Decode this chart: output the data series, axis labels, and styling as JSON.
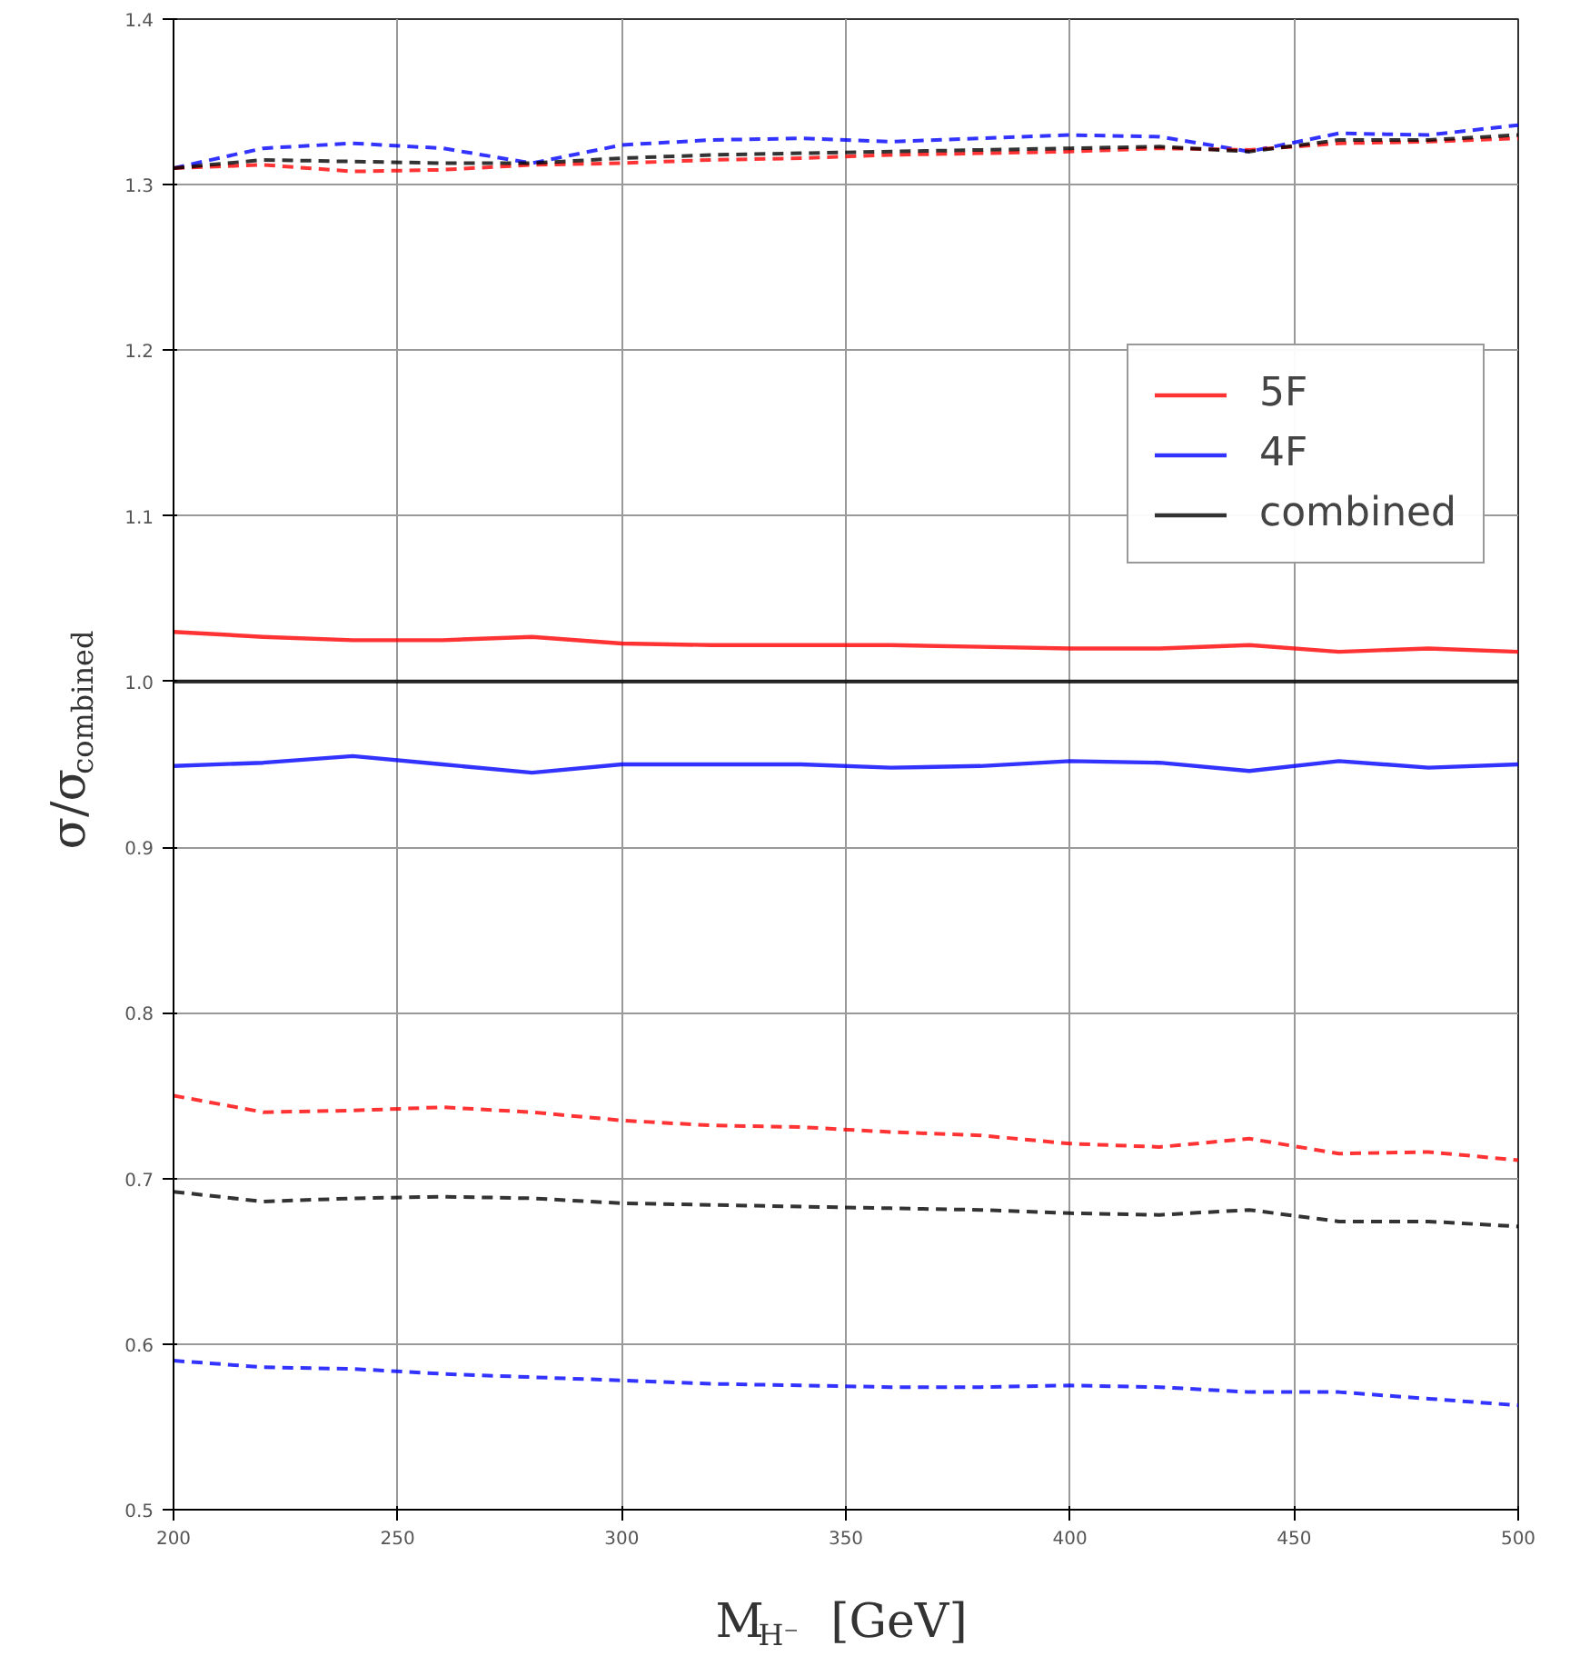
{
  "chart_data": {
    "type": "line",
    "xlabel": "M$_{H⁻}$ [GeV]",
    "ylabel": "σ/σ$_{combined}$",
    "x": [
      200,
      220,
      240,
      260,
      280,
      300,
      320,
      340,
      360,
      380,
      400,
      420,
      440,
      460,
      480,
      500
    ],
    "xlim": [
      200,
      500
    ],
    "xticks": [
      200,
      250,
      300,
      350,
      400,
      450,
      500
    ],
    "ylim": [
      0.5,
      1.4
    ],
    "yticks": [
      0.5,
      0.6,
      0.7,
      0.8,
      0.9,
      {
        "value": 1.0,
        "label": "1.0"
      },
      1.1,
      1.2,
      1.3,
      1.4
    ],
    "grid": true,
    "legend": "right",
    "line_style": "solid",
    "series": [
      {
        "name": "5F",
        "color": "#ff0000",
        "values": [
          1.03,
          1.027,
          1.025,
          1.025,
          1.027,
          1.023,
          1.022,
          1.022,
          1.022,
          1.021,
          1.02,
          1.02,
          1.022,
          1.018,
          1.02,
          1.018
        ]
      },
      {
        "name": "4F",
        "color": "#0000ff",
        "values": [
          0.949,
          0.951,
          0.955,
          0.95,
          0.945,
          0.95,
          0.95,
          0.95,
          0.948,
          0.949,
          0.952,
          0.951,
          0.946,
          0.952,
          0.948,
          0.95
        ]
      },
      {
        "name": "combined",
        "color": "#000000",
        "values": [
          1.0,
          1.0,
          1.0,
          1.0,
          1.0,
          1.0,
          1.0,
          1.0,
          1.0,
          1.0,
          1.0,
          1.0,
          1.0,
          1.0,
          1.0,
          1.0
        ]
      },
      {
        "color": "#ff0000",
        "line_style": "dashed",
        "values": [
          0.75,
          0.74,
          0.741,
          0.743,
          0.74,
          0.735,
          0.732,
          0.731,
          0.728,
          0.726,
          0.721,
          0.719,
          0.724,
          0.715,
          0.716,
          0.711
        ]
      },
      {
        "color": "#000000",
        "line_style": "dashed",
        "values": [
          0.692,
          0.686,
          0.688,
          0.689,
          0.688,
          0.685,
          0.684,
          0.683,
          0.682,
          0.681,
          0.679,
          0.678,
          0.681,
          0.674,
          0.674,
          0.671
        ]
      },
      {
        "color": "#0000ff",
        "line_style": "dashed",
        "values": [
          0.59,
          0.586,
          0.585,
          0.582,
          0.58,
          0.578,
          0.576,
          0.575,
          0.574,
          0.574,
          0.575,
          0.574,
          0.571,
          0.571,
          0.567,
          0.563
        ]
      },
      {
        "color": "#0000ff",
        "line_style": "dashed",
        "values": [
          1.31,
          1.322,
          1.325,
          1.322,
          1.313,
          1.324,
          1.327,
          1.328,
          1.326,
          1.328,
          1.33,
          1.329,
          1.32,
          1.331,
          1.33,
          1.336
        ]
      },
      {
        "color": "#ff0000",
        "line_style": "dashed",
        "values": [
          1.31,
          1.312,
          1.308,
          1.309,
          1.312,
          1.313,
          1.315,
          1.316,
          1.318,
          1.319,
          1.32,
          1.322,
          1.321,
          1.325,
          1.326,
          1.328
        ]
      },
      {
        "color": "#000000",
        "line_style": "dashed",
        "values": [
          1.31,
          1.315,
          1.314,
          1.313,
          1.313,
          1.316,
          1.318,
          1.319,
          1.32,
          1.321,
          1.322,
          1.323,
          1.32,
          1.327,
          1.327,
          1.33
        ]
      }
    ]
  }
}
